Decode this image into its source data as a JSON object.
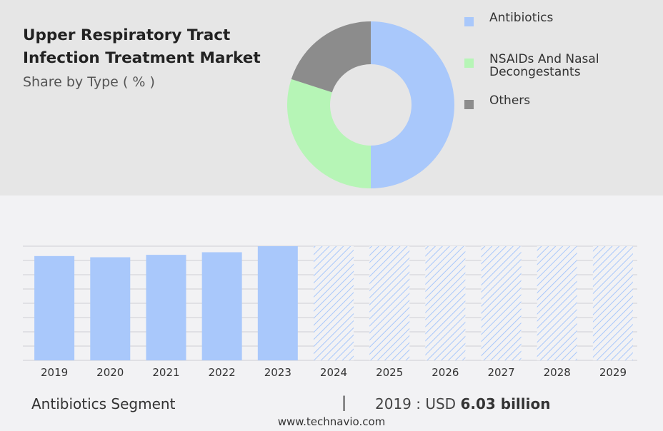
{
  "header": {
    "title": "Upper Respiratory Tract Infection Treatment Market",
    "subtitle": "Share by Type ( % )"
  },
  "chart_data": [
    {
      "type": "pie",
      "style": "donut",
      "labels": [
        "Antibiotics",
        "NSAIDs And Nasal Decongestants",
        "Others"
      ],
      "values": [
        50,
        30,
        20
      ],
      "colors": [
        "#a9c8fb",
        "#b6f5b6",
        "#8c8c8c"
      ],
      "legend_position": "right"
    },
    {
      "type": "bar",
      "categories": [
        "2019",
        "2020",
        "2021",
        "2022",
        "2023",
        "2024",
        "2025",
        "2026",
        "2027",
        "2028",
        "2029"
      ],
      "values": [
        6.03,
        5.96,
        6.1,
        6.25,
        6.6,
        6.6,
        6.6,
        6.6,
        6.6,
        6.6,
        6.6
      ],
      "forecast_from": "2024",
      "colors": {
        "actual": "#a9c8fb",
        "forecast_hatch": "#a9c8fb"
      },
      "grid": true,
      "ylim": [
        0,
        6.6
      ]
    }
  ],
  "footer": {
    "segment_label": "Antibiotics Segment",
    "separator": "|",
    "year_text": "2019 : USD",
    "value_text": "6.03 billion",
    "source": "www.technavio.com"
  }
}
